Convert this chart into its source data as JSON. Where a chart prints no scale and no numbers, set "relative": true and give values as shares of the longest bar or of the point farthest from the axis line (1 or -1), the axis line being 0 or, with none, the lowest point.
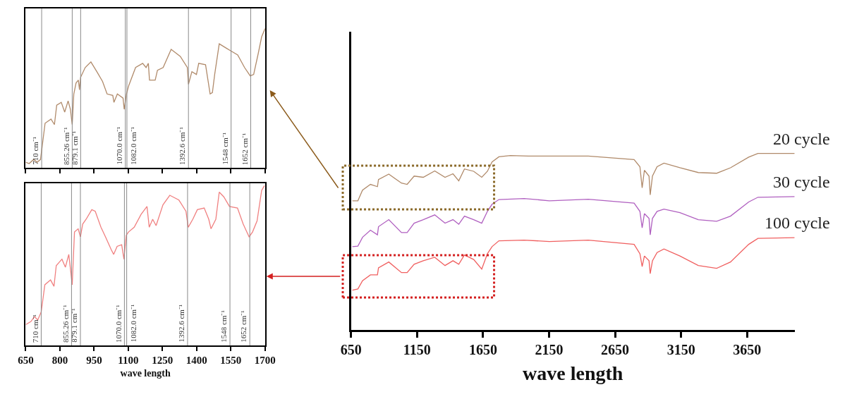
{
  "chart_data": [
    {
      "type": "line",
      "relative": true,
      "xlim": [
        650,
        1700
      ],
      "xticks": [
        {
          "value": 650,
          "label": null
        },
        {
          "value": 800,
          "label": null
        },
        {
          "value": 950,
          "label": null
        },
        {
          "value": 1100,
          "label": null
        },
        {
          "value": 1250,
          "label": null
        },
        {
          "value": 1400,
          "label": null
        },
        {
          "value": 1550,
          "label": null
        },
        {
          "value": 1700,
          "label": null
        }
      ],
      "tick_labels": false,
      "series": [
        {
          "color": "#b08a6a",
          "x": [
            650,
            665,
            685,
            700,
            715,
            725,
            735,
            761,
            776,
            786,
            806,
            821,
            836,
            846,
            854,
            861,
            871,
            881,
            886,
            891,
            911,
            936,
            962,
            987,
            1007,
            1032,
            1037,
            1052,
            1077,
            1082,
            1092,
            1102,
            1132,
            1163,
            1178,
            1188,
            1193,
            1218,
            1228,
            1253,
            1288,
            1328,
            1359,
            1364,
            1379,
            1399,
            1409,
            1439,
            1459,
            1469,
            1479,
            1499,
            1529,
            1549,
            1580,
            1610,
            1635,
            1650,
            1670,
            1685,
            1700
          ],
          "values": [
            0.04,
            0.03,
            0.06,
            0.04,
            0.06,
            0.19,
            0.32,
            0.35,
            0.31,
            0.45,
            0.47,
            0.4,
            0.48,
            0.42,
            0.31,
            0.53,
            0.61,
            0.63,
            0.56,
            0.65,
            0.72,
            0.76,
            0.69,
            0.62,
            0.53,
            0.52,
            0.47,
            0.53,
            0.5,
            0.42,
            0.53,
            0.59,
            0.72,
            0.75,
            0.72,
            0.75,
            0.63,
            0.63,
            0.7,
            0.72,
            0.85,
            0.8,
            0.72,
            0.6,
            0.69,
            0.67,
            0.75,
            0.74,
            0.53,
            0.54,
            0.67,
            0.89,
            0.86,
            0.84,
            0.81,
            0.72,
            0.66,
            0.67,
            0.82,
            0.94,
            1.0
          ]
        }
      ],
      "ref_lines": [
        {
          "axis": "x",
          "value": 720,
          "label": "710 cm⁻¹"
        },
        {
          "axis": "x",
          "value": 854,
          "label": "855.26 cm⁻¹"
        },
        {
          "axis": "x",
          "value": 891,
          "label": "879.1 cm⁻¹"
        },
        {
          "axis": "x",
          "value": 1087,
          "label": "1070.0 cm⁻¹"
        },
        {
          "axis": "x",
          "value": 1094,
          "label": "1082.0 cm⁻¹"
        },
        {
          "axis": "x",
          "value": 1364,
          "label": "1392.6 cm⁻¹"
        },
        {
          "axis": "x",
          "value": 1551,
          "label": "1548 cm⁻¹"
        },
        {
          "axis": "x",
          "value": 1637,
          "label": "1652 cm⁻¹"
        }
      ]
    },
    {
      "type": "line",
      "relative": true,
      "xlim": [
        650,
        1700
      ],
      "xticks": [
        650,
        800,
        950,
        1100,
        1250,
        1400,
        1550,
        1700
      ],
      "xlabel": "wave length",
      "tick_labels": "x",
      "series": [
        {
          "color": "#f08080",
          "x": [
            650,
            673,
            688,
            703,
            718,
            734,
            759,
            774,
            784,
            809,
            824,
            839,
            854,
            864,
            880,
            890,
            900,
            915,
            940,
            955,
            980,
            1000,
            1025,
            1036,
            1051,
            1071,
            1081,
            1091,
            1101,
            1126,
            1156,
            1182,
            1192,
            1207,
            1222,
            1252,
            1282,
            1322,
            1353,
            1363,
            1383,
            1403,
            1433,
            1453,
            1463,
            1484,
            1499,
            1519,
            1544,
            1579,
            1604,
            1630,
            1645,
            1665,
            1685,
            1697
          ],
          "values": [
            0.13,
            0.15,
            0.18,
            0.16,
            0.21,
            0.38,
            0.41,
            0.37,
            0.5,
            0.54,
            0.49,
            0.57,
            0.38,
            0.71,
            0.73,
            0.68,
            0.76,
            0.79,
            0.85,
            0.84,
            0.74,
            0.68,
            0.6,
            0.57,
            0.62,
            0.63,
            0.54,
            0.69,
            0.71,
            0.74,
            0.82,
            0.87,
            0.74,
            0.79,
            0.75,
            0.88,
            0.94,
            0.91,
            0.84,
            0.74,
            0.79,
            0.85,
            0.86,
            0.79,
            0.73,
            0.79,
            0.96,
            0.93,
            0.87,
            0.86,
            0.76,
            0.68,
            0.71,
            0.78,
            0.97,
            1.0
          ]
        }
      ],
      "ref_lines": [
        {
          "axis": "x",
          "value": 718,
          "label": "710 cm⁻¹"
        },
        {
          "axis": "x",
          "value": 851,
          "label": "855.26 cm⁻¹"
        },
        {
          "axis": "x",
          "value": 890,
          "label": "879.1 cm⁻¹"
        },
        {
          "axis": "x",
          "value": 1083,
          "label": "1070.0 cm⁻¹"
        },
        {
          "axis": "x",
          "value": 1093,
          "label": "1082.0 cm⁻¹"
        },
        {
          "axis": "x",
          "value": 1360,
          "label": "1392.6 cm⁻¹"
        },
        {
          "axis": "x",
          "value": 1546,
          "label": "1548 cm⁻¹"
        },
        {
          "axis": "x",
          "value": 1633,
          "label": "1652 cm⁻¹"
        }
      ]
    },
    {
      "type": "line",
      "relative": true,
      "xlim": [
        650,
        4010
      ],
      "xticks": [
        650,
        1150,
        1650,
        2150,
        2650,
        3150,
        3650
      ],
      "xlabel": "wave length",
      "tick_labels": "x",
      "series": [
        {
          "name": "20 cycle",
          "color": "#b08a6a",
          "x": [
            660,
            702,
            737,
            797,
            850,
            858,
            936,
            1032,
            1075,
            1128,
            1197,
            1284,
            1362,
            1422,
            1466,
            1509,
            1579,
            1640,
            1683,
            1718,
            1770,
            1857,
            1995,
            2447,
            2794,
            2838,
            2855,
            2872,
            2907,
            2916,
            2933,
            2968,
            3020,
            3141,
            3280,
            3419,
            3524,
            3662,
            3732,
            4010
          ],
          "values": [
            0.732,
            0.732,
            0.792,
            0.825,
            0.812,
            0.852,
            0.883,
            0.832,
            0.825,
            0.872,
            0.865,
            0.901,
            0.865,
            0.885,
            0.845,
            0.912,
            0.899,
            0.865,
            0.899,
            0.952,
            0.981,
            0.988,
            0.985,
            0.985,
            0.965,
            0.925,
            0.805,
            0.905,
            0.872,
            0.765,
            0.872,
            0.925,
            0.945,
            0.919,
            0.892,
            0.888,
            0.919,
            0.979,
            1.0,
            1.0
          ]
        },
        {
          "name": "30 cycle",
          "color": "#b060c0",
          "x": [
            660,
            702,
            737,
            797,
            850,
            858,
            936,
            1032,
            1075,
            1128,
            1197,
            1284,
            1362,
            1422,
            1466,
            1509,
            1579,
            1640,
            1683,
            1718,
            1770,
            1961,
            2152,
            2447,
            2794,
            2838,
            2855,
            2872,
            2907,
            2916,
            2933,
            2968,
            3020,
            3141,
            3280,
            3419,
            3524,
            3662,
            3732,
            4010
          ],
          "values": [
            0.472,
            0.475,
            0.525,
            0.565,
            0.539,
            0.585,
            0.625,
            0.552,
            0.552,
            0.605,
            0.625,
            0.652,
            0.605,
            0.625,
            0.599,
            0.645,
            0.625,
            0.605,
            0.672,
            0.712,
            0.739,
            0.745,
            0.732,
            0.741,
            0.719,
            0.672,
            0.579,
            0.659,
            0.632,
            0.539,
            0.632,
            0.672,
            0.685,
            0.665,
            0.625,
            0.616,
            0.645,
            0.725,
            0.752,
            0.756
          ]
        },
        {
          "name": "100 cycle",
          "color": "#f06060",
          "x": [
            660,
            702,
            737,
            797,
            850,
            858,
            936,
            1032,
            1075,
            1128,
            1197,
            1284,
            1362,
            1422,
            1466,
            1509,
            1579,
            1640,
            1683,
            1718,
            1770,
            1961,
            2152,
            2447,
            2794,
            2838,
            2855,
            2872,
            2907,
            2916,
            2933,
            2968,
            3020,
            3141,
            3280,
            3419,
            3524,
            3662,
            3732,
            4010
          ],
          "values": [
            0.225,
            0.232,
            0.279,
            0.312,
            0.312,
            0.352,
            0.385,
            0.325,
            0.325,
            0.372,
            0.392,
            0.412,
            0.365,
            0.392,
            0.372,
            0.425,
            0.399,
            0.345,
            0.432,
            0.472,
            0.505,
            0.509,
            0.501,
            0.509,
            0.485,
            0.432,
            0.359,
            0.419,
            0.392,
            0.319,
            0.392,
            0.439,
            0.459,
            0.419,
            0.365,
            0.349,
            0.385,
            0.485,
            0.519,
            0.523
          ]
        }
      ]
    }
  ]
}
